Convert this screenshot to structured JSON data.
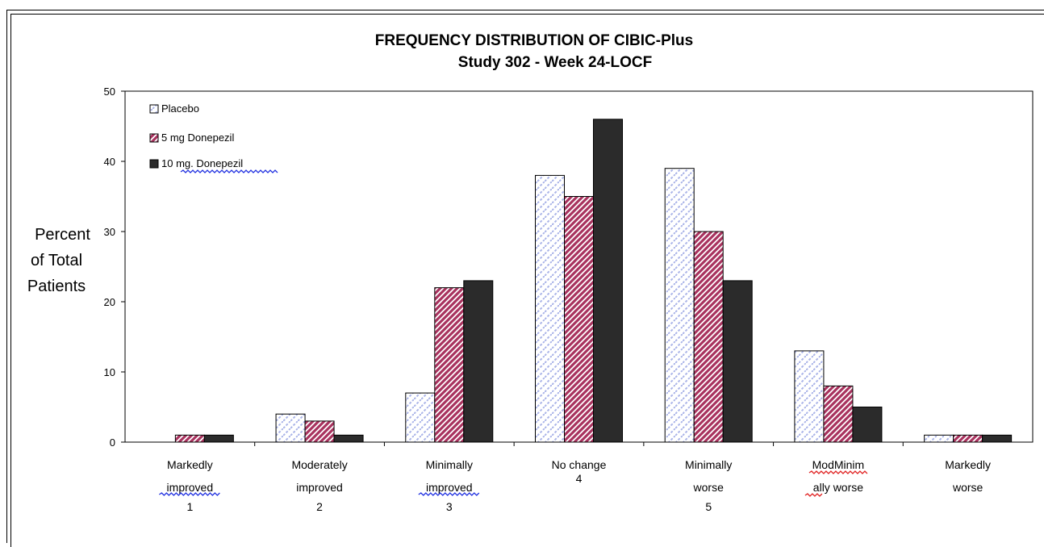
{
  "chart_data": {
    "type": "bar",
    "title": "FREQUENCY DISTRIBUTION OF CIBIC-Plus",
    "subtitle": "Study 302 - Week 24-LOCF",
    "ylabel_lines": [
      "Percent",
      "of Total",
      "Patients"
    ],
    "ylim": [
      0,
      50
    ],
    "yticks": [
      0,
      10,
      20,
      30,
      40,
      50
    ],
    "grid": false,
    "legend_position": "top-left",
    "categories": [
      {
        "lines": [
          "Markedly",
          "improved",
          "1"
        ]
      },
      {
        "lines": [
          "Moderately",
          "improved",
          "2"
        ]
      },
      {
        "lines": [
          "Minimally",
          "improved",
          "3"
        ]
      },
      {
        "lines": [
          "No change",
          "4"
        ]
      },
      {
        "lines": [
          "Minimally",
          "worse",
          "5"
        ]
      },
      {
        "lines": [
          "ModMinim",
          "ally worse"
        ]
      },
      {
        "lines": [
          "Markedly",
          "worse"
        ]
      }
    ],
    "series": [
      {
        "name": "Placebo",
        "values": [
          0,
          4,
          7,
          38,
          39,
          13,
          1
        ],
        "color": "#c8cef0"
      },
      {
        "name": "5 mg Donepezil",
        "values": [
          1,
          3,
          22,
          35,
          30,
          8,
          1
        ],
        "color": "#a8325e"
      },
      {
        "name": "10 mg. Donepezil",
        "values": [
          1,
          1,
          23,
          46,
          23,
          5,
          1
        ],
        "color": "#2b2b2b"
      }
    ]
  }
}
